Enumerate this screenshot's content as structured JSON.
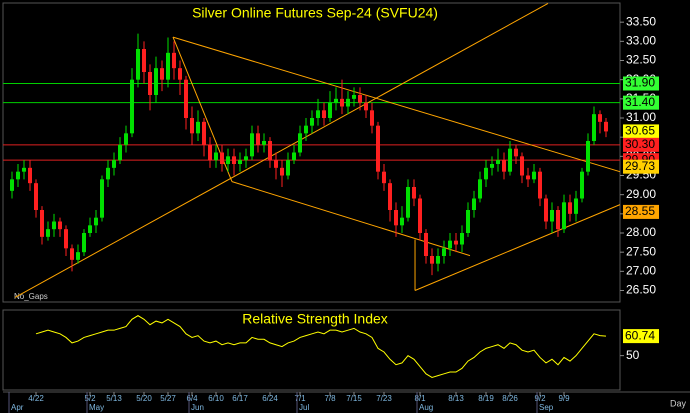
{
  "chart_data": {
    "type": "candlestick",
    "title": "Silver Online Futures Sep-24 (SVFU24)",
    "note": "No_Gaps",
    "x_unit_label": "Day",
    "up_color": "#00e000",
    "down_color": "#ff2020",
    "trendline_color": "#ffa500",
    "ylim": [
      26.2,
      34.0
    ],
    "yticks": [
      {
        "value": 26.5,
        "label": "26.50"
      },
      {
        "value": 27,
        "label": "27.00"
      },
      {
        "value": 27.5,
        "label": "27.50"
      },
      {
        "value": 28,
        "label": "28.00"
      },
      {
        "value": 28.5,
        "label": "28.50"
      },
      {
        "value": 29,
        "label": "29.00"
      },
      {
        "value": 29.5,
        "label": "29.50"
      },
      {
        "value": 30,
        "label": "30.00"
      },
      {
        "value": 30.5,
        "label": "30.50"
      },
      {
        "value": 31,
        "label": "31.00"
      },
      {
        "value": 31.5,
        "label": "31.50"
      },
      {
        "value": 32,
        "label": "32.00"
      },
      {
        "value": 32.5,
        "label": "32.50"
      },
      {
        "value": 33,
        "label": "33.00"
      },
      {
        "value": 33.5,
        "label": "33.50"
      }
    ],
    "categories": [
      null,
      null,
      null,
      null,
      "4/22",
      null,
      null,
      null,
      null,
      null,
      null,
      null,
      null,
      "5/2",
      null,
      null,
      null,
      "5/13",
      null,
      null,
      null,
      null,
      "5/20",
      null,
      null,
      null,
      "5/27",
      null,
      null,
      null,
      "6/4",
      null,
      null,
      null,
      "6/10",
      null,
      null,
      null,
      "6/17",
      null,
      null,
      null,
      null,
      "6/24",
      null,
      null,
      null,
      null,
      "7/1",
      null,
      null,
      null,
      null,
      "7/8",
      null,
      null,
      null,
      "7/15",
      null,
      null,
      null,
      null,
      "7/23",
      null,
      null,
      null,
      null,
      null,
      "8/1",
      null,
      null,
      null,
      null,
      null,
      "8/13",
      null,
      null,
      null,
      null,
      "8/19",
      null,
      null,
      null,
      "8/26",
      null,
      null,
      null,
      null,
      "9/2",
      null,
      null,
      null,
      "9/9",
      null,
      null,
      null,
      null,
      null,
      null,
      null
    ],
    "months": [
      "Apr",
      null,
      null,
      null,
      null,
      null,
      null,
      null,
      null,
      null,
      null,
      null,
      null,
      "May",
      null,
      null,
      null,
      null,
      null,
      null,
      null,
      null,
      null,
      null,
      null,
      null,
      null,
      null,
      null,
      null,
      "Jun",
      null,
      null,
      null,
      null,
      null,
      null,
      null,
      null,
      null,
      null,
      null,
      null,
      null,
      null,
      null,
      null,
      null,
      "Jul",
      null,
      null,
      null,
      null,
      null,
      null,
      null,
      null,
      null,
      null,
      null,
      null,
      null,
      null,
      null,
      null,
      null,
      null,
      null,
      "Aug",
      null,
      null,
      null,
      null,
      null,
      null,
      null,
      null,
      null,
      null,
      null,
      null,
      null,
      null,
      null,
      null,
      null,
      null,
      null,
      "Sep",
      null,
      null,
      null,
      null,
      null,
      null,
      null,
      null,
      null,
      null,
      null
    ],
    "open": [
      29.1,
      29.4,
      29.6,
      29.7,
      29.3,
      28.6,
      27.9,
      28.1,
      28.3,
      28.1,
      27.6,
      27.3,
      27.5,
      28.0,
      28.2,
      28.4,
      29.4,
      29.7,
      29.9,
      30.3,
      30.6,
      32.0,
      32.8,
      32.2,
      31.6,
      32.3,
      32.0,
      32.7,
      32.3,
      32.0,
      31.0,
      30.6,
      30.9,
      30.3,
      29.9,
      30.1,
      29.8,
      30.0,
      29.8,
      29.9,
      30.0,
      30.6,
      30.3,
      30.4,
      29.9,
      29.7,
      29.5,
      29.9,
      30.1,
      30.6,
      30.8,
      31.0,
      31.2,
      31.0,
      31.4,
      31.5,
      31.3,
      31.5,
      31.6,
      31.4,
      31.2,
      30.8,
      29.6,
      29.3,
      28.6,
      28.2,
      28.4,
      29.2,
      28.9,
      28.0,
      27.4,
      27.2,
      27.4,
      27.6,
      27.8,
      27.7,
      28.0,
      28.6,
      28.9,
      29.4,
      29.7,
      29.8,
      29.9,
      29.6,
      30.2,
      30.0,
      29.5,
      29.4,
      29.6,
      28.9,
      28.3,
      28.6,
      28.1,
      28.8,
      28.5,
      28.9,
      29.6,
      30.4,
      31.1,
      30.9
    ],
    "high": [
      29.6,
      29.8,
      29.9,
      29.9,
      29.4,
      28.7,
      28.3,
      28.5,
      28.4,
      28.2,
      27.7,
      27.7,
      28.1,
      28.4,
      28.6,
      29.5,
      29.9,
      30.1,
      30.5,
      30.8,
      32.3,
      33.2,
      33.0,
      32.4,
      32.6,
      32.5,
      33.1,
      33.0,
      32.5,
      32.1,
      31.3,
      31.2,
      31.0,
      30.5,
      30.3,
      30.3,
      30.2,
      30.2,
      30.1,
      30.2,
      30.8,
      30.8,
      30.6,
      30.5,
      30.1,
      29.9,
      30.1,
      30.3,
      30.8,
      31.0,
      31.2,
      31.5,
      31.4,
      31.7,
      31.8,
      32.0,
      31.7,
      31.8,
      31.8,
      31.6,
      31.4,
      30.9,
      29.8,
      29.4,
      28.8,
      28.7,
      29.4,
      29.4,
      29.0,
      28.1,
      27.6,
      27.6,
      27.8,
      28.0,
      28.0,
      28.2,
      28.8,
      29.1,
      29.6,
      29.9,
      30.0,
      30.2,
      30.1,
      30.4,
      30.3,
      30.1,
      29.7,
      29.8,
      29.7,
      29.0,
      28.8,
      28.7,
      29.0,
      29.0,
      29.1,
      29.7,
      30.6,
      31.3,
      31.2,
      31.0
    ],
    "low": [
      28.9,
      29.2,
      29.4,
      29.1,
      28.4,
      27.7,
      27.8,
      27.9,
      27.9,
      27.4,
      27.0,
      27.2,
      27.4,
      27.9,
      28.0,
      28.3,
      29.2,
      29.5,
      29.8,
      30.1,
      30.5,
      31.8,
      31.9,
      31.2,
      31.4,
      31.7,
      31.8,
      32.0,
      31.6,
      30.7,
      30.3,
      30.4,
      30.0,
      29.7,
      29.7,
      29.6,
      29.6,
      29.5,
      29.6,
      29.7,
      29.9,
      30.1,
      30.1,
      29.7,
      29.4,
      29.2,
      29.4,
      29.8,
      30.0,
      30.4,
      30.6,
      30.8,
      30.8,
      30.9,
      31.2,
      31.1,
      31.1,
      31.3,
      31.2,
      31.0,
      30.6,
      29.4,
      29.1,
      28.3,
      27.9,
      28.0,
      28.3,
      28.7,
      27.8,
      27.2,
      26.9,
      27.0,
      27.2,
      27.4,
      27.5,
      27.5,
      27.9,
      28.4,
      28.8,
      29.2,
      29.5,
      29.6,
      29.4,
      29.5,
      29.8,
      29.3,
      29.2,
      29.3,
      28.7,
      28.1,
      28.0,
      27.9,
      28.0,
      28.3,
      28.3,
      28.8,
      29.5,
      30.3,
      30.6,
      30.5
    ],
    "close": [
      29.4,
      29.6,
      29.7,
      29.3,
      28.6,
      27.9,
      28.1,
      28.3,
      28.1,
      27.6,
      27.3,
      27.5,
      28.0,
      28.2,
      28.4,
      29.4,
      29.7,
      29.9,
      30.3,
      30.6,
      32.0,
      32.8,
      32.2,
      31.6,
      32.3,
      32.0,
      32.7,
      32.3,
      32.0,
      31.0,
      30.6,
      30.9,
      30.3,
      29.9,
      30.1,
      29.8,
      30.0,
      29.8,
      29.9,
      30.0,
      30.6,
      30.3,
      30.4,
      29.9,
      29.7,
      29.5,
      29.9,
      30.1,
      30.6,
      30.8,
      31.0,
      31.2,
      31.0,
      31.4,
      31.5,
      31.3,
      31.5,
      31.6,
      31.4,
      31.2,
      30.8,
      29.6,
      29.3,
      28.6,
      28.2,
      28.4,
      29.2,
      28.9,
      28.0,
      27.4,
      27.2,
      27.4,
      27.6,
      27.8,
      27.7,
      28.0,
      28.6,
      28.9,
      29.4,
      29.7,
      29.8,
      29.9,
      29.6,
      30.2,
      30.0,
      29.5,
      29.4,
      29.6,
      28.9,
      28.3,
      28.6,
      28.1,
      28.8,
      28.5,
      28.9,
      29.6,
      30.4,
      31.1,
      30.9,
      30.65
    ],
    "levels": [
      {
        "value": 31.9,
        "color": "#00d000"
      },
      {
        "value": 31.4,
        "color": "#00d000"
      },
      {
        "value": 30.3,
        "color": "#e02020"
      },
      {
        "value": 29.9,
        "color": "#e02020"
      }
    ],
    "price_tags": [
      {
        "value": 31.9,
        "label": "31.90",
        "color": "#33ff33"
      },
      {
        "value": 31.4,
        "label": "31.40",
        "color": "#33ff33"
      },
      {
        "value": 30.65,
        "label": "30.65",
        "color": "#ffff00"
      },
      {
        "value": 30.3,
        "label": "30.30",
        "color": "#ff2020"
      },
      {
        "value": 29.9,
        "label": "29.90",
        "color": "#ff2020"
      },
      {
        "value": 29.73,
        "label": "29.73",
        "color": "#ffd000"
      },
      {
        "value": 28.55,
        "label": "28.55",
        "color": "#ffa500"
      }
    ],
    "trendlines": [
      {
        "x": [
          0.5,
          89.33
        ],
        "y": [
          26.32,
          33.99
        ]
      },
      {
        "x": [
          26.83,
          101.33
        ],
        "y": [
          33.11,
          29.6
        ]
      },
      {
        "x": [
          26.83,
          36.67
        ],
        "y": [
          33.11,
          29.34
        ]
      },
      {
        "x": [
          36.67,
          76.33
        ],
        "y": [
          29.34,
          27.41
        ]
      },
      {
        "x": [
          67.17,
          67.17
        ],
        "y": [
          27.83,
          26.5
        ]
      },
      {
        "x": [
          67.17,
          101.33
        ],
        "y": [
          26.5,
          28.74
        ]
      }
    ],
    "rsi": {
      "title": "Relative Strength Index",
      "color": "#ffff00",
      "ylim": [
        30,
        74
      ],
      "yticks": [
        50
      ],
      "tag": {
        "value": 60.74,
        "label": "60.74",
        "color": "#ffff00"
      },
      "values": [
        null,
        null,
        null,
        null,
        62,
        63,
        64,
        63,
        62,
        60,
        57,
        58,
        60,
        61,
        62,
        63,
        64,
        64,
        65,
        66,
        70,
        72,
        70,
        67,
        69,
        68,
        70,
        68,
        66,
        62,
        60,
        61,
        58,
        57,
        58,
        56,
        57,
        56,
        57,
        57,
        60,
        59,
        59,
        57,
        56,
        55,
        57,
        58,
        60,
        61,
        62,
        63,
        62,
        64,
        64,
        63,
        64,
        65,
        63,
        62,
        60,
        54,
        52,
        48,
        45,
        46,
        50,
        48,
        44,
        40,
        38,
        39,
        40,
        41,
        41,
        43,
        47,
        49,
        52,
        54,
        55,
        56,
        54,
        57,
        56,
        53,
        52,
        53,
        49,
        46,
        48,
        45,
        49,
        47,
        50,
        54,
        58,
        62,
        61,
        60.74
      ]
    }
  }
}
